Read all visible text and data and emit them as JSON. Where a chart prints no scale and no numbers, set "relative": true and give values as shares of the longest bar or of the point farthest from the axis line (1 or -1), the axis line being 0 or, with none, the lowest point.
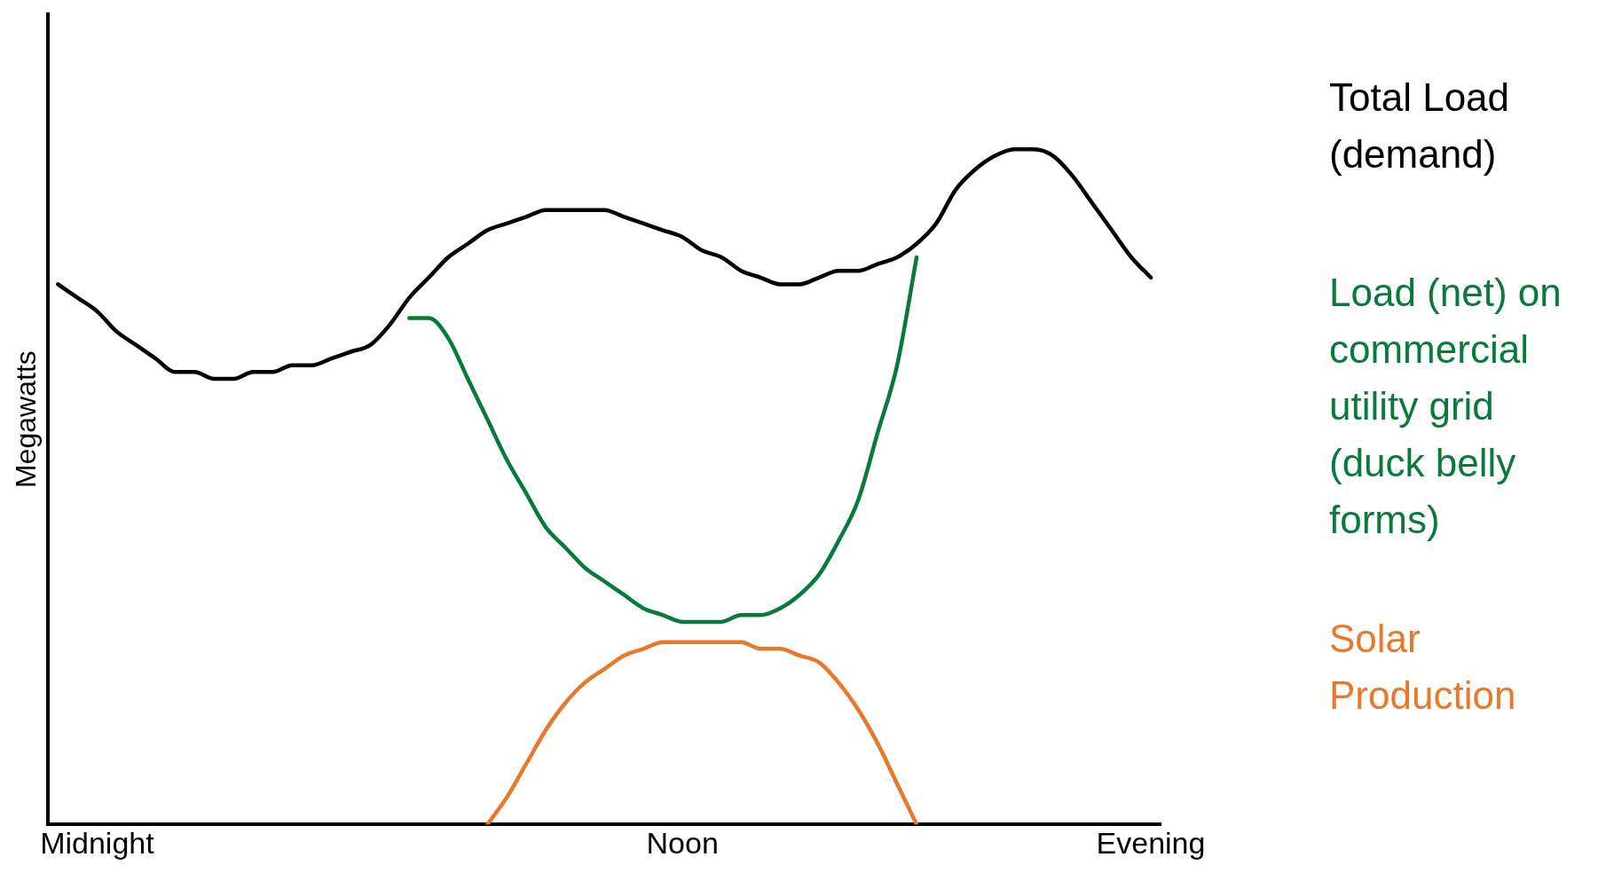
{
  "chart_data": {
    "type": "line",
    "ylabel": "Megawatts",
    "relative": true,
    "legend": false,
    "grid": false,
    "marker": "none",
    "line_style": "solid",
    "categories": [
      null,
      null,
      "Midnight",
      null,
      null,
      null,
      null,
      null,
      null,
      null,
      null,
      null,
      null,
      null,
      null,
      null,
      null,
      null,
      null,
      null,
      null,
      null,
      null,
      null,
      null,
      null,
      null,
      null,
      null,
      null,
      null,
      null,
      "Noon",
      null,
      null,
      null,
      null,
      null,
      null,
      null,
      null,
      null,
      null,
      null,
      null,
      null,
      null,
      null,
      null,
      null,
      null,
      null,
      null,
      null,
      null,
      null,
      "Evening"
    ],
    "series": [
      {
        "name": "Total Load (demand)",
        "color": "#000000",
        "values": [
          0.8,
          0.78,
          0.76,
          0.73,
          0.71,
          0.69,
          0.67,
          0.67,
          0.66,
          0.66,
          0.67,
          0.67,
          0.68,
          0.68,
          0.69,
          0.7,
          0.71,
          0.74,
          0.78,
          0.81,
          0.84,
          0.86,
          0.88,
          0.89,
          0.9,
          0.91,
          0.91,
          0.91,
          0.91,
          0.9,
          0.89,
          0.88,
          0.87,
          0.85,
          0.84,
          0.82,
          0.81,
          0.8,
          0.8,
          0.81,
          0.82,
          0.82,
          0.83,
          0.84,
          0.86,
          0.89,
          0.94,
          0.97,
          0.99,
          1,
          1,
          0.99,
          0.96,
          0.92,
          0.88,
          0.84,
          0.81
        ]
      },
      {
        "name": "Load (net) on commercial utility grid (duck belly forms)",
        "color": "#087a3a",
        "values": [
          null,
          null,
          null,
          null,
          null,
          null,
          null,
          null,
          null,
          null,
          null,
          null,
          null,
          null,
          null,
          null,
          null,
          null,
          0.75,
          0.75,
          0.72,
          0.66,
          0.6,
          0.54,
          0.49,
          0.44,
          0.41,
          0.38,
          0.36,
          0.34,
          0.32,
          0.31,
          0.3,
          0.3,
          0.3,
          0.31,
          0.31,
          0.32,
          0.34,
          0.37,
          0.42,
          0.48,
          0.58,
          0.68,
          0.84,
          null,
          null,
          null,
          null,
          null,
          null,
          null,
          null,
          null,
          null,
          null,
          null
        ]
      },
      {
        "name": "Solar Production",
        "color": "#e8782a",
        "values": [
          null,
          null,
          null,
          null,
          null,
          null,
          null,
          null,
          null,
          null,
          null,
          null,
          null,
          null,
          null,
          null,
          null,
          null,
          null,
          null,
          null,
          null,
          0,
          0.04,
          0.09,
          0.14,
          0.18,
          0.21,
          0.23,
          0.25,
          0.26,
          0.27,
          0.27,
          0.27,
          0.27,
          0.27,
          0.26,
          0.26,
          0.25,
          0.24,
          0.21,
          0.17,
          0.12,
          0.06,
          0,
          null,
          null,
          null,
          null,
          null,
          null,
          null,
          null,
          null,
          null,
          null,
          null
        ]
      }
    ]
  }
}
